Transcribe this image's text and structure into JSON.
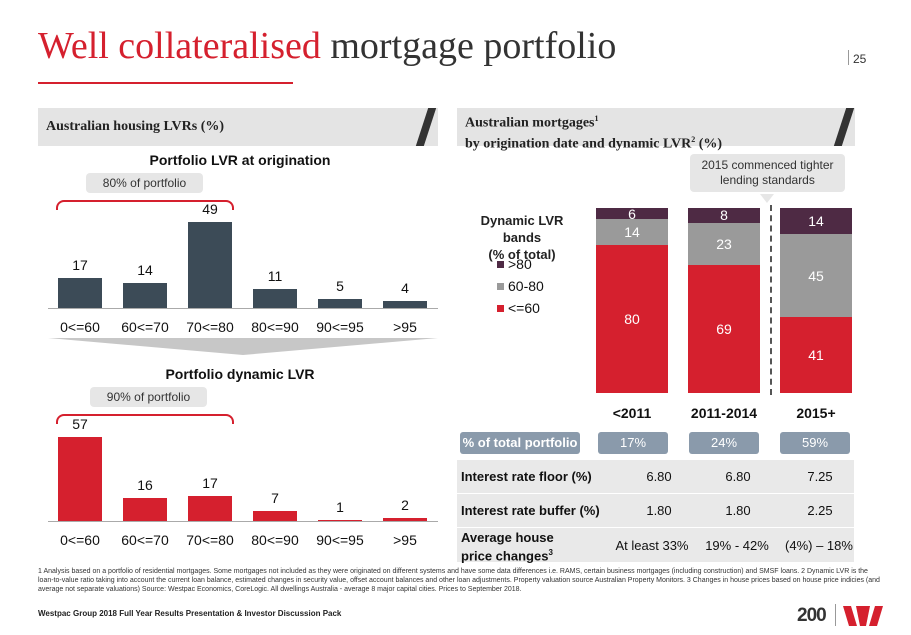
{
  "header": {
    "title_accent": "Well collateralised",
    "title_rest": " mortgage portfolio",
    "page_number": "25"
  },
  "left_panel": {
    "heading": "Australian housing LVRs (%)",
    "origination": {
      "title": "Portfolio LVR at origination",
      "callout": "80% of portfolio"
    },
    "dynamic": {
      "title": "Portfolio dynamic LVR",
      "callout": "90% of portfolio"
    }
  },
  "right_panel": {
    "heading_line1": "Australian mortgages",
    "heading_sup1": "1",
    "heading_line2": "by origination date and dynamic LVR",
    "heading_sup2": "2",
    "heading_suffix": " (%)",
    "callout": "2015 commenced tighter lending standards",
    "legend_title_1": "Dynamic LVR bands",
    "legend_title_2": "(% of total)",
    "legend": [
      {
        "label": ">80",
        "color": "#4e2a44"
      },
      {
        "label": "60-80",
        "color": "#9a9a9a"
      },
      {
        "label": "<=60",
        "color": "#d5202e"
      }
    ],
    "pct_label": "% of total portfolio",
    "rows": [
      {
        "label": "Interest rate floor (%)",
        "values": [
          "6.80",
          "6.80",
          "7.25"
        ]
      },
      {
        "label": "Interest rate buffer (%)",
        "values": [
          "1.80",
          "1.80",
          "2.25"
        ]
      },
      {
        "label_1": "Average house",
        "label_2": "price changes",
        "label_sup": "3",
        "values": [
          "At least 33%",
          "19% - 42%",
          "(4%) – 18%"
        ]
      }
    ]
  },
  "chart_data": [
    {
      "type": "bar",
      "title": "Portfolio LVR at origination",
      "categories": [
        "0<=60",
        "60<=70",
        "70<=80",
        "80<=90",
        "90<=95",
        ">95"
      ],
      "values": [
        17,
        14,
        49,
        11,
        5,
        4
      ],
      "ylim": [
        0,
        50
      ],
      "color": "#3c4b57"
    },
    {
      "type": "bar",
      "title": "Portfolio dynamic LVR",
      "categories": [
        "0<=60",
        "60<=70",
        "70<=80",
        "80<=90",
        "90<=95",
        ">95"
      ],
      "values": [
        57,
        16,
        17,
        7,
        1,
        2
      ],
      "ylim": [
        0,
        60
      ],
      "color": "#d5202e"
    },
    {
      "type": "bar",
      "stacked": true,
      "title": "Australian mortgages by origination date and dynamic LVR (%)",
      "categories": [
        "<2011",
        "2011-2014",
        "2015+"
      ],
      "series": [
        {
          "name": "<=60",
          "values": [
            80,
            69,
            41
          ],
          "color": "#d5202e"
        },
        {
          "name": "60-80",
          "values": [
            14,
            23,
            45
          ],
          "color": "#9a9a9a"
        },
        {
          "name": ">80",
          "values": [
            6,
            8,
            14
          ],
          "color": "#4e2a44"
        }
      ],
      "share_of_total": [
        "17%",
        "24%",
        "59%"
      ],
      "ylim": [
        0,
        100
      ]
    }
  ],
  "footnote": "1 Analysis based on a portfolio of residential mortgages. Some mortgages not included as they were originated on different systems and have some data differences i.e. RAMS, certain business mortgages (including construction) and SMSF loans. 2 Dynamic LVR is the loan-to-value ratio taking into account the current loan balance, estimated changes in security value, offset account balances and other loan adjustments. Property valuation source Australian Property Monitors. 3 Changes in house prices based on house price indicies (and average not separate valuations) Source: Westpac Economics, CoreLogic. All dwellings Australia - average 8 major capital cities. Prices to September 2018.",
  "footer": {
    "text": "Westpac Group 2018 Full Year Results Presentation & Investor Discussion Pack",
    "badge": "200"
  }
}
